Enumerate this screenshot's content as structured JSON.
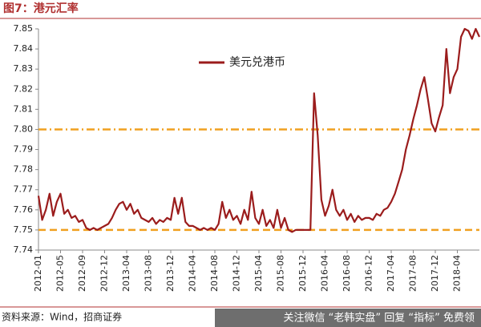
{
  "chart_data": {
    "type": "line",
    "title": "图7：港元汇率",
    "source": "资料来源：Wind，招商证券",
    "watermark": "关注微信 “老韩实盘” 回复 “指标” 免费领",
    "categories": [
      "2012-01",
      null,
      null,
      null,
      null,
      null,
      "2012-05",
      null,
      null,
      null,
      null,
      null,
      "2012-09",
      null,
      null,
      null,
      null,
      null,
      "2012-12",
      null,
      null,
      null,
      null,
      null,
      "2013-04",
      null,
      null,
      null,
      null,
      null,
      "2013-08",
      null,
      null,
      null,
      null,
      null,
      "2013-12",
      null,
      null,
      null,
      null,
      null,
      "2014-04",
      null,
      null,
      null,
      null,
      null,
      "2014-08",
      null,
      null,
      null,
      null,
      null,
      "2014-12",
      null,
      null,
      null,
      null,
      null,
      "2015-04",
      null,
      null,
      null,
      null,
      null,
      "2015-08",
      null,
      null,
      null,
      null,
      null,
      "2015-12",
      null,
      null,
      null,
      null,
      null,
      "2016-04",
      null,
      null,
      null,
      null,
      null,
      "2016-08",
      null,
      null,
      null,
      null,
      null,
      "2016-12",
      null,
      null,
      null,
      null,
      null,
      "2017-04",
      null,
      null,
      null,
      null,
      null,
      "2017-08",
      null,
      null,
      null,
      null,
      null,
      "2017-12",
      null,
      null,
      null,
      null,
      null,
      "2018-04",
      null,
      null,
      null,
      null,
      null,
      null
    ],
    "series": [
      {
        "name": "美元兑港币",
        "color": "#9b1c1c",
        "values": [
          7.767,
          7.755,
          7.76,
          7.768,
          7.757,
          7.764,
          7.768,
          7.758,
          7.76,
          7.756,
          7.757,
          7.754,
          7.755,
          7.751,
          7.75,
          7.751,
          7.75,
          7.751,
          7.752,
          7.753,
          7.756,
          7.76,
          7.763,
          7.764,
          7.76,
          7.763,
          7.758,
          7.76,
          7.756,
          7.755,
          7.754,
          7.756,
          7.753,
          7.755,
          7.754,
          7.756,
          7.755,
          7.766,
          7.758,
          7.766,
          7.754,
          7.752,
          7.752,
          7.751,
          7.75,
          7.751,
          7.75,
          7.751,
          7.75,
          7.753,
          7.764,
          7.756,
          7.76,
          7.755,
          7.757,
          7.753,
          7.76,
          7.755,
          7.769,
          7.756,
          7.753,
          7.76,
          7.752,
          7.755,
          7.751,
          7.76,
          7.751,
          7.756,
          7.75,
          7.749,
          7.75,
          7.75,
          7.75,
          7.75,
          7.75,
          7.818,
          7.797,
          7.765,
          7.757,
          7.762,
          7.77,
          7.76,
          7.757,
          7.76,
          7.755,
          7.758,
          7.754,
          7.757,
          7.755,
          7.756,
          7.756,
          7.755,
          7.758,
          7.757,
          7.76,
          7.761,
          7.764,
          7.768,
          7.774,
          7.78,
          7.79,
          7.797,
          7.805,
          7.812,
          7.82,
          7.826,
          7.815,
          7.803,
          7.799,
          7.806,
          7.812,
          7.84,
          7.818,
          7.826,
          7.83,
          7.846,
          7.85,
          7.849,
          7.845,
          7.85,
          7.846
        ]
      }
    ],
    "ylim": [
      7.74,
      7.85
    ],
    "yticks": [
      7.74,
      7.75,
      7.76,
      7.77,
      7.78,
      7.79,
      {
        "value": 7.8,
        "label": "7.80"
      },
      7.81,
      7.82,
      7.83,
      7.84,
      7.85
    ],
    "reference_lines": [
      {
        "value": 7.8,
        "style": "dashdot",
        "color": "#f0a020"
      },
      {
        "value": 7.75,
        "style": "dashed",
        "color": "#f0a020"
      }
    ]
  }
}
